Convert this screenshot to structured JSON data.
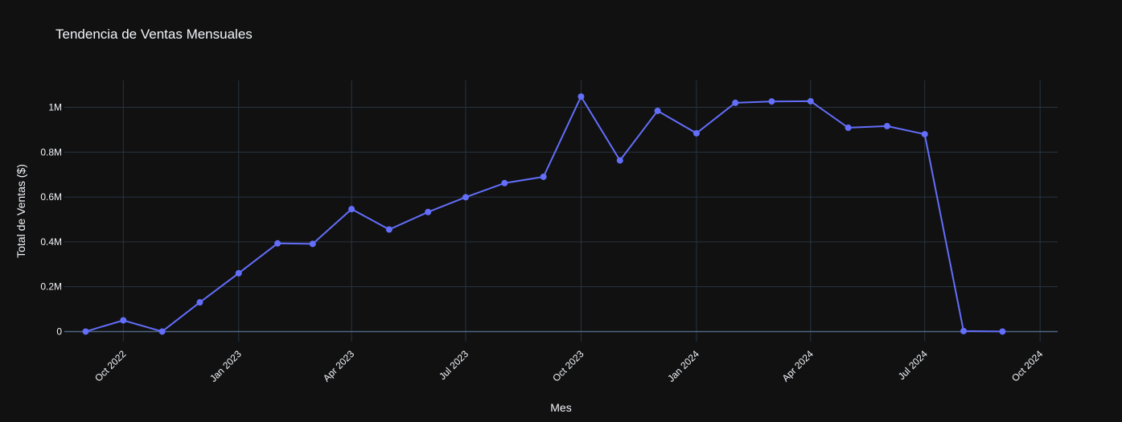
{
  "chart_data": {
    "type": "line",
    "title": "Tendencia de Ventas Mensuales",
    "xlabel": "Mes",
    "ylabel": "Total de Ventas ($)",
    "x": [
      "2022-09-01",
      "2022-10-01",
      "2022-11-01",
      "2022-12-01",
      "2023-01-01",
      "2023-02-01",
      "2023-03-01",
      "2023-04-01",
      "2023-05-01",
      "2023-06-01",
      "2023-07-01",
      "2023-08-01",
      "2023-09-01",
      "2023-10-01",
      "2023-11-01",
      "2023-12-01",
      "2024-01-01",
      "2024-02-01",
      "2024-03-01",
      "2024-04-01",
      "2024-05-01",
      "2024-06-01",
      "2024-07-01",
      "2024-08-01",
      "2024-09-01"
    ],
    "series": [
      {
        "values": [
          0,
          50000,
          0,
          130000,
          260000,
          393000,
          391000,
          546000,
          455000,
          533000,
          599000,
          662000,
          690000,
          1048000,
          763000,
          984000,
          884000,
          1020000,
          1026000,
          1027000,
          909000,
          916000,
          880000,
          2000,
          0
        ]
      }
    ],
    "x_ticks": [
      "Oct 2022",
      "Jan 2023",
      "Apr 2023",
      "Jul 2023",
      "Oct 2023",
      "Jan 2024",
      "Apr 2024",
      "Jul 2024",
      "Oct 2024"
    ],
    "x_tick_dates": [
      "2022-10-01",
      "2023-01-01",
      "2023-04-01",
      "2023-07-01",
      "2023-10-01",
      "2024-01-01",
      "2024-04-01",
      "2024-07-01",
      "2024-10-01"
    ],
    "y_ticks": [
      0,
      200000,
      400000,
      600000,
      800000,
      1000000
    ],
    "y_tick_labels": [
      "0",
      "0.2M",
      "0.4M",
      "0.6M",
      "0.8M",
      "1M"
    ],
    "xlim": [
      "2022-08-15",
      "2024-10-15"
    ],
    "ylim": [
      -45000,
      1120000
    ],
    "grid": true,
    "legend": "none",
    "colors": {
      "background": "#111111",
      "line": "#636efa",
      "grid": "#283442",
      "text": "#f2f5fa"
    }
  }
}
